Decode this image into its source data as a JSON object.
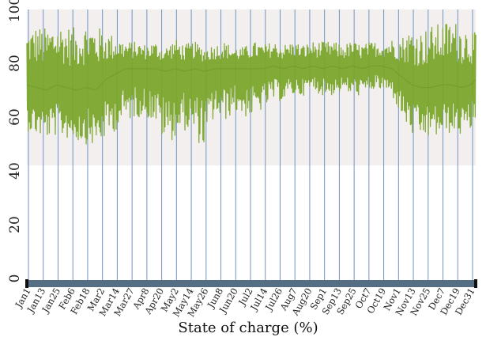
{
  "chart_data": {
    "type": "line",
    "title": "",
    "xlabel": "State of charge (%)",
    "ylabel": "",
    "ylim": [
      0,
      100
    ],
    "y_ticks": [
      0,
      20,
      40,
      60,
      80,
      100
    ],
    "x_tick_labels": [
      "Jan1",
      "Jan13",
      "Jan25",
      "Feb6",
      "Feb18",
      "Mar2",
      "Mar14",
      "Mar27",
      "Apr8",
      "Apr20",
      "May2",
      "May14",
      "May26",
      "Jun8",
      "Jun20",
      "Jul2",
      "Jul14",
      "Jul26",
      "Aug7",
      "Aug20",
      "Sep1",
      "Sep13",
      "Sep25",
      "Oct7",
      "Oct19",
      "Nov1",
      "Nov13",
      "Nov25",
      "Dec7",
      "Dec19",
      "Dec31"
    ],
    "shaded_band": {
      "from": 42,
      "to": 100,
      "color": "#f3efee"
    },
    "series": [
      {
        "color": "#7aa52b",
        "x": [
          1,
          9,
          17,
          25,
          33,
          41,
          49,
          57,
          65,
          73,
          81,
          89,
          97,
          105,
          113,
          121,
          129,
          137,
          145,
          153,
          161,
          169,
          177,
          185,
          193,
          201,
          209,
          217,
          225,
          233,
          241,
          249,
          257,
          265,
          273,
          281,
          289,
          297,
          305,
          313,
          321,
          329,
          337,
          345,
          353,
          361,
          365
        ],
        "upper": [
          92,
          94,
          93,
          95,
          94,
          93,
          95,
          94,
          92,
          90,
          88,
          88,
          87,
          88,
          86,
          89,
          87,
          88,
          86,
          87,
          88,
          86,
          86,
          88,
          87,
          88,
          87,
          88,
          87,
          88,
          88,
          88,
          87,
          88,
          87,
          88,
          88,
          89,
          90,
          93,
          92,
          94,
          95,
          96,
          95,
          93,
          91
        ],
        "lower": [
          55,
          53,
          52,
          53,
          52,
          51,
          50,
          49,
          52,
          55,
          58,
          60,
          60,
          58,
          50,
          52,
          55,
          52,
          48,
          60,
          58,
          62,
          60,
          60,
          63,
          66,
          66,
          68,
          68,
          70,
          68,
          68,
          70,
          68,
          68,
          70,
          70,
          68,
          60,
          53,
          52,
          52,
          53,
          54,
          53,
          55,
          58
        ],
        "mean": [
          72,
          71,
          70,
          72,
          71,
          70,
          71,
          70,
          74,
          76,
          78,
          78,
          78,
          78,
          77,
          78,
          77,
          78,
          77,
          78,
          78,
          78,
          78,
          78,
          78,
          79,
          78,
          79,
          78,
          79,
          78,
          79,
          78,
          79,
          78,
          79,
          79,
          78,
          75,
          72,
          71,
          71,
          72,
          72,
          71,
          72,
          74
        ]
      }
    ],
    "grid": "vertical",
    "legend": "none"
  },
  "colors": {
    "line": "#7aa52b",
    "line_dark": "#5f8a1f",
    "band": "#f3efee",
    "grid": "#6f93c4",
    "axis_bar": "#556e84",
    "axis_end": "#111111"
  }
}
